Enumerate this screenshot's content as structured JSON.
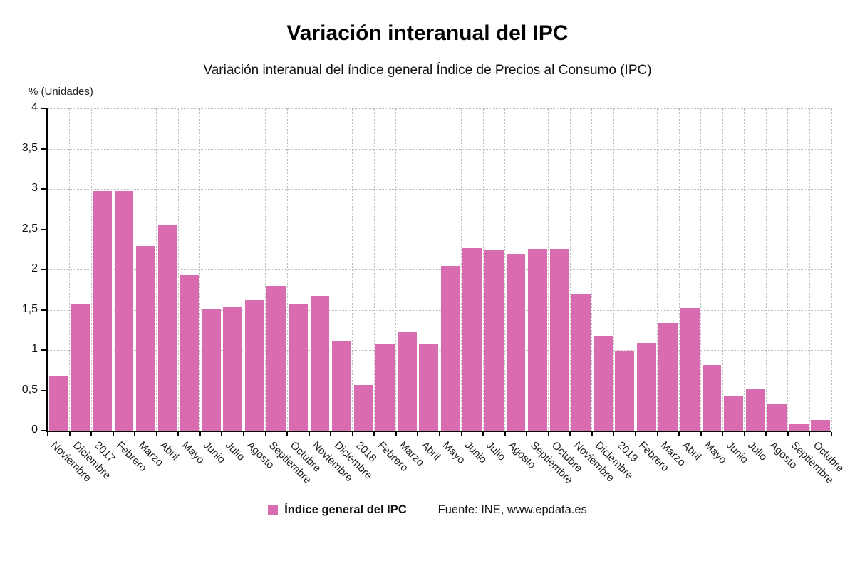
{
  "title": "Variación interanual del IPC",
  "subtitle": "Variación interanual del índice general Índice de Precios al Consumo (IPC)",
  "axis_unit_label": "% (Unidades)",
  "legend": {
    "series_label": "Índice general del IPC",
    "source": "Fuente: INE, www.epdata.es"
  },
  "colors": {
    "bar": "#d96cb0",
    "grid": "#bdbdbd",
    "axis": "#000000"
  },
  "chart_data": {
    "type": "bar",
    "title": "Variación interanual del IPC",
    "subtitle": "Variación interanual del índice general Índice de Precios al Consumo (IPC)",
    "xlabel": "",
    "ylabel": "% (Unidades)",
    "ylim": [
      0,
      4
    ],
    "grid": true,
    "legend_position": "bottom",
    "series_name": "Índice general del IPC",
    "source": "Fuente: INE, www.epdata.es",
    "categories": [
      "Noviembre",
      "Diciembre",
      "2017",
      "Febrero",
      "Marzo",
      "Abril",
      "Mayo",
      "Junio",
      "Julio",
      "Agosto",
      "Septiembre",
      "Octubre",
      "Noviembre",
      "Diciembre",
      "2018",
      "Febrero",
      "Marzo",
      "Abril",
      "Mayo",
      "Junio",
      "Julio",
      "Agosto",
      "Septiembre",
      "Octubre",
      "Noviembre",
      "Diciembre",
      "2019",
      "Febrero",
      "Marzo",
      "Abril",
      "Mayo",
      "Junio",
      "Julio",
      "Agosto",
      "Septiembre",
      "Octubre"
    ],
    "values": [
      0.67,
      1.57,
      2.97,
      2.97,
      2.29,
      2.55,
      1.93,
      1.51,
      1.54,
      1.62,
      1.8,
      1.57,
      1.67,
      1.11,
      0.57,
      1.07,
      1.22,
      1.08,
      2.04,
      2.27,
      2.25,
      2.19,
      2.26,
      2.26,
      1.69,
      1.18,
      0.98,
      1.09,
      1.34,
      1.52,
      0.81,
      0.43,
      0.52,
      0.33,
      0.08,
      0.13
    ],
    "yticks": [
      {
        "value": 0,
        "label": "0"
      },
      {
        "value": 0.5,
        "label": "0,5"
      },
      {
        "value": 1,
        "label": "1"
      },
      {
        "value": 1.5,
        "label": "1,5"
      },
      {
        "value": 2,
        "label": "2"
      },
      {
        "value": 2.5,
        "label": "2,5"
      },
      {
        "value": 3,
        "label": "3"
      },
      {
        "value": 3.5,
        "label": "3,5"
      },
      {
        "value": 4,
        "label": "4"
      }
    ]
  }
}
